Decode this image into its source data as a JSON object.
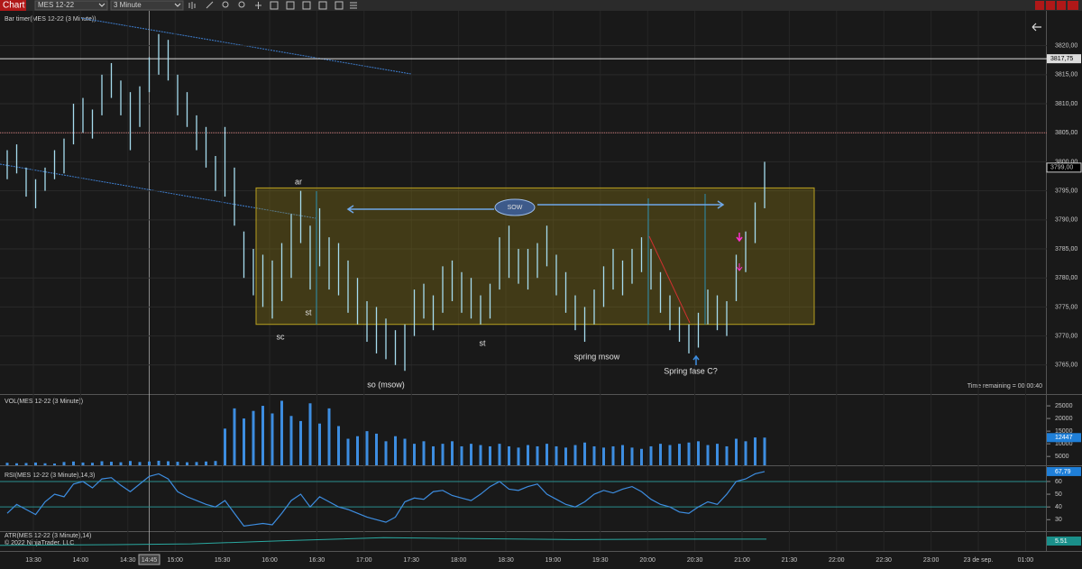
{
  "toolbar": {
    "app_button": "Chart",
    "instrument": "MES 12-22",
    "interval": "3 Minute"
  },
  "price_panel": {
    "label": "Bar timer(MES 12-22 (3 Minute))",
    "time_remaining": "Time remaining = 00:00:40",
    "ylim": [
      3760,
      3826
    ],
    "yticks": [
      {
        "value": 3820,
        "label": "3820,00"
      },
      {
        "value": 3815,
        "label": "3815,00"
      },
      {
        "value": 3810,
        "label": "3810,00"
      },
      {
        "value": 3805,
        "label": "3805,00"
      },
      {
        "value": 3800,
        "label": "3800,00"
      },
      {
        "value": 3795,
        "label": "3795,00"
      },
      {
        "value": 3790,
        "label": "3790,00"
      },
      {
        "value": 3785,
        "label": "3785,00"
      },
      {
        "value": 3780,
        "label": "3780,00"
      },
      {
        "value": 3775,
        "label": "3775,00"
      },
      {
        "value": 3770,
        "label": "3770,00"
      },
      {
        "value": 3765,
        "label": "3765,00"
      }
    ],
    "highs": [
      3802,
      3803,
      3799,
      3797,
      3799,
      3802,
      3804,
      3810,
      3811,
      3809,
      3815,
      3817,
      3814,
      3812,
      3813,
      3818,
      3822,
      3821,
      3815,
      3812,
      3808,
      3806,
      3801,
      3806,
      3799,
      3788,
      3785,
      3784,
      3783,
      3786,
      3791,
      3795,
      3789,
      3792,
      3787,
      3786,
      3783,
      3780,
      3776,
      3775,
      3773,
      3771,
      3772,
      3778,
      3779,
      3777,
      3782,
      3783,
      3781,
      3780,
      3777,
      3779,
      3787,
      3789,
      3785,
      3785,
      3786,
      3789,
      3784,
      3781,
      3777,
      3775,
      3778,
      3782,
      3785,
      3783,
      3785,
      3787,
      3785,
      3781,
      3777,
      3775,
      3772,
      3774,
      3778,
      3777,
      3776,
      3784,
      3788,
      3793,
      3800
    ],
    "lows": [
      3797,
      3798,
      3794,
      3792,
      3795,
      3797,
      3798,
      3803,
      3805,
      3804,
      3808,
      3811,
      3808,
      3802,
      3806,
      3812,
      3815,
      3814,
      3808,
      3806,
      3802,
      3799,
      3795,
      3794,
      3789,
      3780,
      3777,
      3775,
      3773,
      3776,
      3780,
      3786,
      3778,
      3782,
      3778,
      3777,
      3774,
      3772,
      3769,
      3767,
      3766,
      3765,
      3764,
      3770,
      3773,
      3771,
      3774,
      3776,
      3774,
      3773,
      3772,
      3773,
      3778,
      3780,
      3779,
      3778,
      3780,
      3782,
      3777,
      3774,
      3771,
      3769,
      3772,
      3775,
      3778,
      3777,
      3779,
      3781,
      3778,
      3774,
      3771,
      3769,
      3767,
      3768,
      3772,
      3771,
      3770,
      3776,
      3781,
      3786,
      3792
    ],
    "hlines": [
      {
        "value": 3817.75,
        "label": "3817,75"
      },
      {
        "value": 3805
      }
    ],
    "last": {
      "value": 3799,
      "label": "3799,00"
    },
    "range_box": {
      "top": 3795.5,
      "bottom": 3772
    },
    "annotations": [
      "ar",
      "sc",
      "st",
      "st",
      "so (msow)",
      "spring msow",
      "Spring fase C?",
      "SOW"
    ]
  },
  "volume_panel": {
    "label": "VOL(MES 12-22 (3 Minute))",
    "ylim": [
      1500,
      29300
    ],
    "yticks": [
      25000,
      20000,
      15000,
      10000,
      5000
    ],
    "values": [
      2500,
      2300,
      2400,
      2600,
      2300,
      2200,
      2800,
      3000,
      2600,
      2500,
      3100,
      2900,
      2700,
      3200,
      2800,
      3000,
      3300,
      3100,
      2900,
      2700,
      2800,
      3000,
      3200,
      16000,
      24000,
      20000,
      23000,
      25000,
      22000,
      27000,
      21000,
      19000,
      26000,
      18000,
      24000,
      17000,
      12000,
      13000,
      15000,
      14000,
      11000,
      13000,
      12000,
      10000,
      11000,
      9000,
      10000,
      11000,
      9000,
      10000,
      9500,
      9000,
      10000,
      9000,
      8500,
      9500,
      9000,
      10000,
      9000,
      8500,
      9500,
      10500,
      9000,
      8500,
      9000,
      9500,
      8500,
      8000,
      9000,
      10000,
      9500,
      10000,
      10500,
      11000,
      9500,
      10000,
      9000,
      12000,
      11000,
      12500,
      12447
    ]
  },
  "rsi_panel": {
    "label": "RSI(MES 12-22 (3 Minute),14,3)",
    "ylim": [
      21,
      72
    ],
    "yticks": [
      60,
      50,
      40,
      30
    ],
    "levels": [
      60,
      40
    ],
    "values": [
      35,
      42,
      38,
      34,
      44,
      50,
      48,
      58,
      60,
      55,
      62,
      63,
      57,
      52,
      58,
      64,
      66,
      62,
      52,
      48,
      45,
      42,
      40,
      45,
      35,
      25,
      26,
      27,
      26,
      35,
      45,
      50,
      40,
      48,
      44,
      40,
      38,
      35,
      32,
      30,
      28,
      32,
      44,
      47,
      46,
      52,
      53,
      49,
      47,
      45,
      50,
      56,
      60,
      54,
      53,
      56,
      58,
      50,
      46,
      42,
      40,
      44,
      50,
      53,
      51,
      54,
      56,
      52,
      46,
      42,
      40,
      36,
      35,
      40,
      44,
      42,
      50,
      60,
      62,
      66,
      67.79
    ],
    "last_label": "67,79"
  },
  "atr_panel": {
    "label": "ATR(MES 12-22 (3 Minute),14)",
    "copyright": "© 2022 NinjaTrader, LLC",
    "ylim": [
      3,
      7
    ],
    "values": [
      4.2,
      4.3,
      4.5,
      5.2,
      5.8,
      5.6,
      5.4,
      5.5,
      5.51
    ]
  },
  "time_axis": {
    "labels": [
      "13:30",
      "14:00",
      "14:30",
      "15:00",
      "15:30",
      "16:00",
      "16:30",
      "17:00",
      "17:30",
      "18:00",
      "18:30",
      "19:00",
      "19:30",
      "20:00",
      "20:30",
      "21:00",
      "21:30",
      "22:00",
      "22:30",
      "23:00",
      "23 de sep.",
      "01:00"
    ],
    "cursor_label": "14:45"
  }
}
